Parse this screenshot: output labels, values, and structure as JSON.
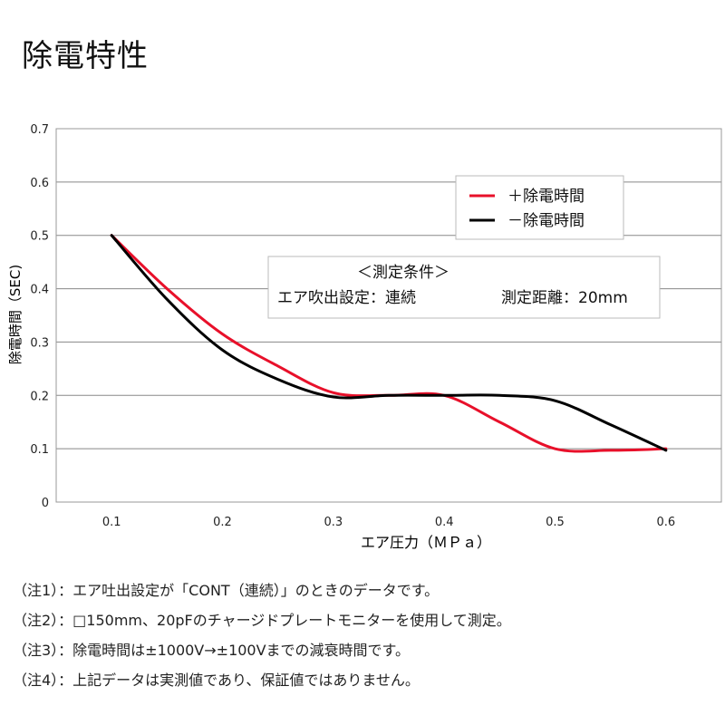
{
  "page": {
    "title": "除電特性"
  },
  "chart_data": {
    "type": "line",
    "xlabel": "エア圧力（ＭＰａ）",
    "ylabel": "除電時間（SEC)",
    "xlim": [
      0.05,
      0.65
    ],
    "ylim": [
      0,
      0.7
    ],
    "x_ticks": [
      "0.1",
      "0.2",
      "0.3",
      "0.4",
      "0.5",
      "0.6"
    ],
    "y_ticks": [
      "0",
      "0.1",
      "0.2",
      "0.3",
      "0.4",
      "0.5",
      "0.6",
      "0.7"
    ],
    "grid": "horizontal",
    "legend_position": "top-right",
    "series": [
      {
        "name": "＋除電時間",
        "color": "#e8102a",
        "points": [
          [
            0.1,
            0.5
          ],
          [
            0.15,
            0.4
          ],
          [
            0.2,
            0.315
          ],
          [
            0.25,
            0.255
          ],
          [
            0.3,
            0.205
          ],
          [
            0.35,
            0.2
          ],
          [
            0.4,
            0.2
          ],
          [
            0.45,
            0.15
          ],
          [
            0.5,
            0.1
          ],
          [
            0.55,
            0.097
          ],
          [
            0.6,
            0.1
          ]
        ]
      },
      {
        "name": "－除電時間",
        "color": "#000000",
        "points": [
          [
            0.1,
            0.5
          ],
          [
            0.15,
            0.38
          ],
          [
            0.2,
            0.285
          ],
          [
            0.25,
            0.23
          ],
          [
            0.3,
            0.197
          ],
          [
            0.35,
            0.2
          ],
          [
            0.4,
            0.2
          ],
          [
            0.45,
            0.2
          ],
          [
            0.5,
            0.19
          ],
          [
            0.55,
            0.145
          ],
          [
            0.6,
            0.097
          ]
        ]
      }
    ],
    "annotation": {
      "heading": "＜測定条件＞",
      "left": "エア吹出設定：連続",
      "right": "測定距離：20mm"
    }
  },
  "notes": [
    "（注1）：エア吐出設定が「CONT（連続）」のときのデータです。",
    "（注2）：□150mm、20pFのチャージドプレートモニターを使用して測定。",
    "（注3）：除電時間は±1000V→±100Vまでの減衰時間です。",
    "（注4）：上記データは実測値であり、保証値ではありません。"
  ]
}
